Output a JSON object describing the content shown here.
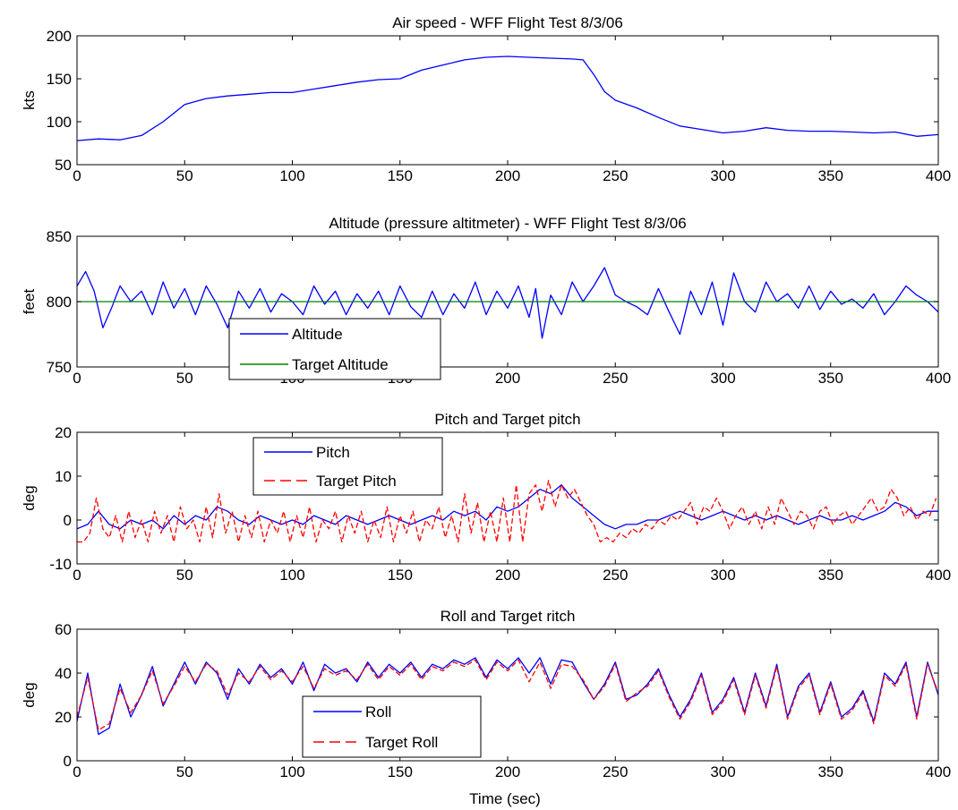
{
  "figure": {
    "xlabel": "Time (sec)"
  },
  "chart_data": [
    {
      "type": "line",
      "title": "Air speed - WFF Flight Test 8/3/06",
      "xlabel": "",
      "ylabel": "kts",
      "xlim": [
        0,
        400
      ],
      "ylim": [
        50,
        200
      ],
      "xticks": [
        0,
        50,
        100,
        150,
        200,
        250,
        300,
        350,
        400
      ],
      "yticks": [
        50,
        100,
        150,
        200
      ],
      "grid": false,
      "legend": null,
      "series": [
        {
          "color": "#0000ff",
          "style": "solid",
          "x": [
            0,
            10,
            20,
            30,
            40,
            50,
            60,
            70,
            80,
            90,
            100,
            110,
            120,
            130,
            140,
            150,
            160,
            170,
            180,
            190,
            200,
            210,
            220,
            230,
            235,
            240,
            245,
            250,
            260,
            270,
            280,
            290,
            300,
            310,
            320,
            330,
            340,
            350,
            360,
            370,
            380,
            390,
            400
          ],
          "y": [
            78,
            80,
            79,
            84,
            100,
            120,
            127,
            130,
            132,
            134,
            134,
            138,
            142,
            146,
            149,
            150,
            160,
            166,
            172,
            175,
            176,
            175,
            174,
            173,
            172,
            155,
            135,
            125,
            116,
            105,
            95,
            91,
            87,
            89,
            93,
            90,
            89,
            89,
            88,
            87,
            88,
            83,
            85
          ]
        }
      ]
    },
    {
      "type": "line",
      "title": "Altitude (pressure altitmeter)  - WFF Flight Test 8/3/06",
      "xlabel": "",
      "ylabel": "feet",
      "xlim": [
        0,
        400
      ],
      "ylim": [
        750,
        850
      ],
      "xticks": [
        0,
        50,
        100,
        150,
        200,
        250,
        300,
        350,
        400
      ],
      "yticks": [
        750,
        800,
        850
      ],
      "grid": false,
      "legend": "inside, lower-left",
      "series": [
        {
          "name": "Altitude",
          "color": "#0000ff",
          "style": "solid",
          "x": [
            0,
            4,
            8,
            12,
            16,
            20,
            25,
            30,
            35,
            40,
            45,
            50,
            55,
            60,
            65,
            70,
            75,
            80,
            85,
            90,
            95,
            100,
            105,
            110,
            115,
            120,
            125,
            130,
            135,
            140,
            145,
            150,
            155,
            160,
            165,
            170,
            175,
            180,
            185,
            190,
            195,
            200,
            205,
            210,
            213,
            216,
            220,
            225,
            230,
            235,
            240,
            245,
            250,
            255,
            260,
            265,
            270,
            275,
            280,
            285,
            290,
            295,
            300,
            305,
            310,
            315,
            320,
            325,
            330,
            335,
            340,
            345,
            350,
            355,
            360,
            365,
            370,
            375,
            380,
            385,
            390,
            395,
            400
          ],
          "y": [
            812,
            823,
            808,
            780,
            795,
            812,
            800,
            808,
            790,
            815,
            795,
            810,
            790,
            812,
            798,
            780,
            808,
            795,
            810,
            792,
            806,
            800,
            790,
            812,
            798,
            808,
            790,
            806,
            795,
            808,
            790,
            812,
            796,
            788,
            808,
            790,
            806,
            795,
            815,
            790,
            808,
            795,
            812,
            788,
            810,
            772,
            805,
            790,
            815,
            800,
            812,
            826,
            805,
            800,
            796,
            790,
            810,
            792,
            775,
            808,
            790,
            815,
            782,
            822,
            800,
            792,
            815,
            800,
            806,
            795,
            812,
            794,
            808,
            798,
            802,
            795,
            806,
            790,
            800,
            812,
            805,
            800,
            792
          ]
        },
        {
          "name": "Target Altitude",
          "color": "#008000",
          "style": "solid",
          "x": [
            0,
            400
          ],
          "y": [
            800,
            800
          ]
        }
      ]
    },
    {
      "type": "line",
      "title": "Pitch and Target pitch",
      "xlabel": "",
      "ylabel": "deg",
      "xlim": [
        0,
        400
      ],
      "ylim": [
        -10,
        20
      ],
      "xticks": [
        0,
        50,
        100,
        150,
        200,
        250,
        300,
        350,
        400
      ],
      "yticks": [
        -10,
        0,
        10,
        20
      ],
      "grid": false,
      "legend": "inside, top-left",
      "series": [
        {
          "name": "Pitch",
          "color": "#0000ff",
          "style": "solid",
          "x": [
            0,
            5,
            10,
            15,
            20,
            25,
            30,
            35,
            40,
            45,
            50,
            55,
            60,
            65,
            70,
            75,
            80,
            85,
            90,
            95,
            100,
            105,
            110,
            115,
            120,
            125,
            130,
            135,
            140,
            145,
            150,
            155,
            160,
            165,
            170,
            175,
            180,
            185,
            190,
            195,
            200,
            205,
            210,
            215,
            220,
            225,
            230,
            235,
            240,
            245,
            250,
            255,
            260,
            265,
            270,
            275,
            280,
            285,
            290,
            295,
            300,
            305,
            310,
            315,
            320,
            325,
            330,
            335,
            340,
            345,
            350,
            355,
            360,
            365,
            370,
            375,
            380,
            385,
            390,
            395,
            400
          ],
          "y": [
            -2,
            -1,
            2,
            -1,
            -2,
            0,
            -1,
            0,
            -2,
            1,
            -1,
            1,
            0,
            3,
            2,
            0,
            -1,
            1,
            0,
            -1,
            0,
            -1,
            1,
            0,
            -1,
            1,
            0,
            -1,
            0,
            1,
            0,
            -1,
            0,
            1,
            0,
            2,
            1,
            2,
            0,
            3,
            2,
            3,
            5,
            7,
            6,
            8,
            5,
            3,
            1,
            -1,
            -2,
            -1,
            -1,
            0,
            0,
            1,
            2,
            1,
            0,
            1,
            2,
            1,
            0,
            1,
            0,
            1,
            0,
            -1,
            0,
            1,
            0,
            0,
            1,
            0,
            1,
            2,
            4,
            3,
            1,
            2,
            2
          ]
        },
        {
          "name": "Target Pitch",
          "color": "#ff0000",
          "style": "dashed",
          "x": [
            0,
            3,
            6,
            9,
            12,
            15,
            18,
            21,
            24,
            27,
            30,
            33,
            36,
            39,
            42,
            45,
            48,
            51,
            54,
            57,
            60,
            63,
            66,
            69,
            72,
            75,
            78,
            81,
            84,
            87,
            90,
            93,
            96,
            99,
            102,
            105,
            108,
            111,
            114,
            117,
            120,
            123,
            126,
            129,
            132,
            135,
            138,
            141,
            144,
            147,
            150,
            153,
            156,
            159,
            162,
            165,
            168,
            171,
            174,
            177,
            180,
            183,
            186,
            189,
            192,
            195,
            198,
            201,
            204,
            207,
            210,
            213,
            216,
            219,
            222,
            225,
            228,
            231,
            234,
            237,
            240,
            243,
            246,
            249,
            252,
            255,
            258,
            261,
            264,
            267,
            270,
            273,
            276,
            279,
            282,
            285,
            288,
            291,
            294,
            297,
            300,
            303,
            306,
            309,
            312,
            315,
            318,
            321,
            324,
            327,
            330,
            333,
            336,
            339,
            342,
            345,
            348,
            351,
            354,
            357,
            360,
            363,
            366,
            369,
            372,
            375,
            378,
            381,
            384,
            387,
            390,
            393,
            396,
            399
          ],
          "y": [
            -5,
            -5,
            -3,
            5,
            -2,
            -4,
            1,
            -5,
            2,
            -4,
            0,
            -5,
            2,
            -3,
            1,
            -5,
            3,
            -2,
            0,
            -5,
            3,
            -4,
            6,
            -3,
            2,
            -5,
            1,
            -4,
            2,
            -5,
            0,
            -3,
            2,
            -5,
            1,
            -4,
            3,
            -5,
            0,
            -2,
            2,
            -5,
            1,
            -3,
            2,
            -5,
            0,
            -4,
            3,
            -5,
            1,
            -3,
            2,
            -5,
            0,
            -2,
            3,
            -4,
            1,
            -5,
            6,
            -3,
            4,
            -5,
            2,
            -5,
            5,
            -5,
            8,
            -5,
            6,
            8,
            2,
            9,
            3,
            8,
            5,
            7,
            4,
            1,
            -1,
            -5,
            -4,
            -5,
            -3,
            -4,
            -2,
            -3,
            -1,
            -2,
            0,
            -1,
            1,
            0,
            2,
            4,
            -1,
            3,
            2,
            5,
            2,
            -2,
            1,
            3,
            -1,
            2,
            -2,
            3,
            -1,
            5,
            2,
            -1,
            2,
            1,
            -2,
            2,
            3,
            -1,
            1,
            2,
            -1,
            1,
            3,
            5,
            2,
            3,
            7,
            5,
            1,
            3,
            0,
            2,
            1,
            5
          ]
        }
      ]
    },
    {
      "type": "line",
      "title": "Roll and Target ritch",
      "xlabel": "Time (sec)",
      "ylabel": "deg",
      "xlim": [
        0,
        400
      ],
      "ylim": [
        0,
        60
      ],
      "xticks": [
        0,
        50,
        100,
        150,
        200,
        250,
        300,
        350,
        400
      ],
      "yticks": [
        0,
        20,
        40,
        60
      ],
      "grid": false,
      "legend": "inside, lower-center",
      "series": [
        {
          "name": "Roll",
          "color": "#0000ff",
          "style": "solid",
          "x": [
            0,
            5,
            10,
            15,
            20,
            25,
            30,
            35,
            40,
            45,
            50,
            55,
            60,
            65,
            70,
            75,
            80,
            85,
            90,
            95,
            100,
            105,
            110,
            115,
            120,
            125,
            130,
            135,
            140,
            145,
            150,
            155,
            160,
            165,
            170,
            175,
            180,
            185,
            190,
            195,
            200,
            205,
            210,
            215,
            220,
            225,
            230,
            235,
            240,
            245,
            250,
            255,
            260,
            265,
            270,
            275,
            280,
            285,
            290,
            295,
            300,
            305,
            310,
            315,
            320,
            325,
            330,
            335,
            340,
            345,
            350,
            355,
            360,
            365,
            370,
            375,
            380,
            385,
            390,
            395,
            400
          ],
          "y": [
            18,
            40,
            12,
            15,
            35,
            20,
            30,
            43,
            25,
            35,
            45,
            35,
            45,
            40,
            28,
            42,
            35,
            44,
            38,
            42,
            35,
            45,
            32,
            44,
            40,
            42,
            36,
            45,
            38,
            44,
            40,
            45,
            38,
            44,
            42,
            46,
            44,
            47,
            38,
            46,
            42,
            47,
            40,
            47,
            35,
            46,
            45,
            36,
            28,
            35,
            45,
            28,
            30,
            35,
            42,
            30,
            20,
            28,
            40,
            22,
            28,
            38,
            22,
            40,
            25,
            44,
            20,
            34,
            40,
            22,
            36,
            20,
            24,
            32,
            18,
            40,
            35,
            45,
            20,
            45,
            30
          ]
        },
        {
          "name": "Target Roll",
          "color": "#ff0000",
          "style": "dashed",
          "x": [
            0,
            5,
            10,
            15,
            20,
            25,
            30,
            35,
            40,
            45,
            50,
            55,
            60,
            65,
            70,
            75,
            80,
            85,
            90,
            95,
            100,
            105,
            110,
            115,
            120,
            125,
            130,
            135,
            140,
            145,
            150,
            155,
            160,
            165,
            170,
            175,
            180,
            185,
            190,
            195,
            200,
            205,
            210,
            215,
            220,
            225,
            230,
            235,
            240,
            245,
            250,
            255,
            260,
            265,
            270,
            275,
            280,
            285,
            290,
            295,
            300,
            305,
            310,
            315,
            320,
            325,
            330,
            335,
            340,
            345,
            350,
            355,
            360,
            365,
            370,
            375,
            380,
            385,
            390,
            395,
            400
          ],
          "y": [
            20,
            38,
            14,
            17,
            33,
            22,
            30,
            41,
            26,
            34,
            43,
            36,
            44,
            41,
            30,
            40,
            36,
            43,
            37,
            41,
            36,
            43,
            33,
            42,
            39,
            41,
            37,
            44,
            37,
            43,
            39,
            44,
            37,
            43,
            41,
            45,
            43,
            46,
            37,
            45,
            41,
            46,
            36,
            45,
            33,
            44,
            43,
            37,
            28,
            34,
            44,
            27,
            31,
            34,
            41,
            29,
            19,
            27,
            39,
            21,
            27,
            37,
            21,
            39,
            24,
            43,
            19,
            33,
            39,
            21,
            35,
            19,
            23,
            31,
            17,
            39,
            34,
            44,
            19,
            44,
            31
          ]
        }
      ]
    }
  ]
}
